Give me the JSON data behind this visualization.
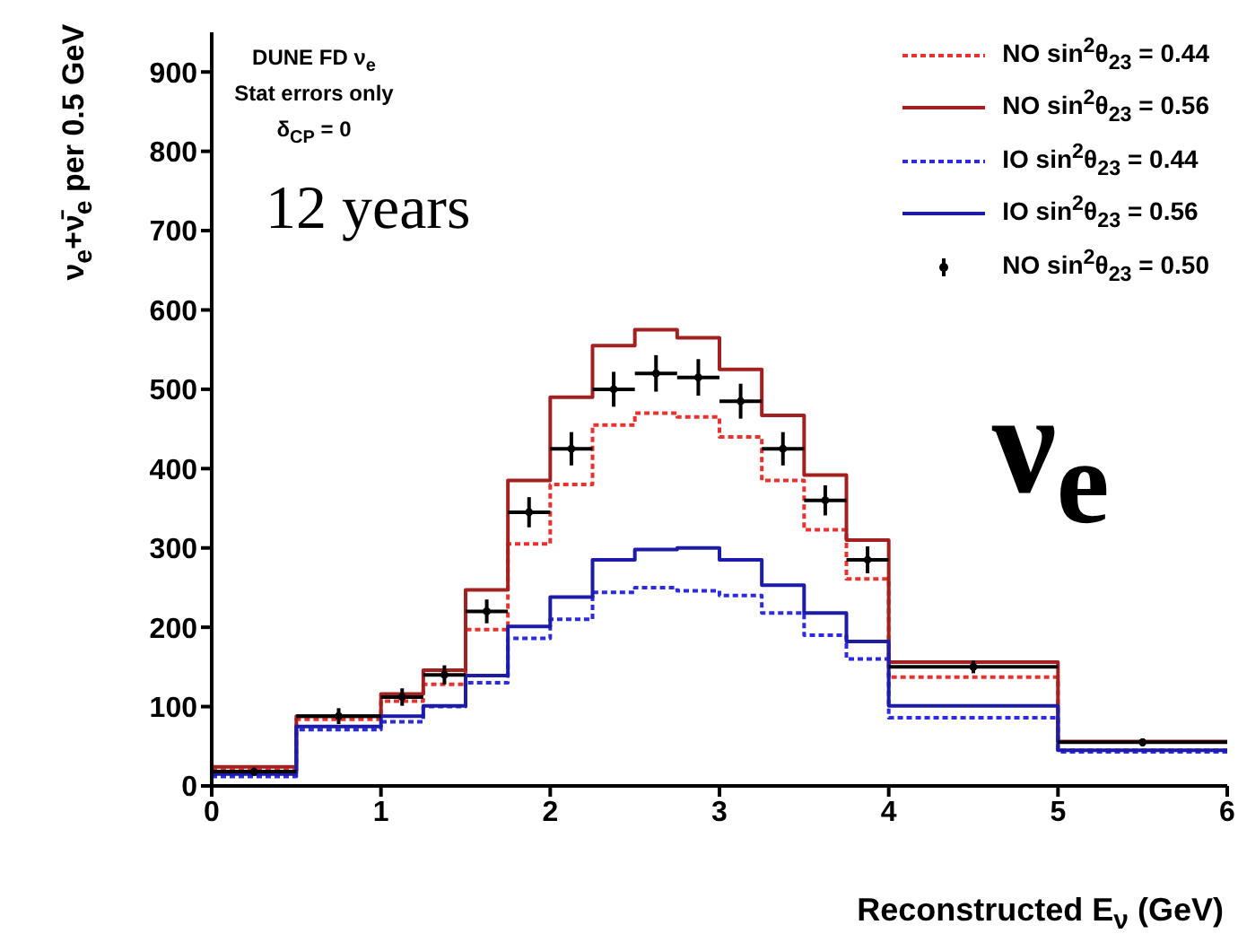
{
  "chart_data": {
    "type": "step",
    "annotations": [
      "DUNE FD ν$_{e}$",
      "Stat errors only",
      "δ$_{CP}$ = 0",
      "12 years",
      "ν$_{e}$"
    ],
    "xlabel": "Reconstructed E$_{ν}$ (GeV)",
    "ylabel": "ν$_{e}$+ν̄$_{e}$ per 0.5 GeV",
    "x": [
      0,
      0.5,
      1,
      1.25,
      1.5,
      1.75,
      2,
      2.25,
      2.5,
      2.75,
      3,
      3.25,
      3.5,
      3.75,
      4,
      5,
      6
    ],
    "series": [
      {
        "name": "NO sin$^{2}$θ$_{23}$ = 0.44",
        "color": "#e8322e",
        "line_style": "dotted",
        "values": [
          20,
          84,
          107,
          128,
          197,
          305,
          380,
          455,
          470,
          465,
          440,
          385,
          323,
          261,
          137,
          45,
          45
        ]
      },
      {
        "name": "NO sin$^{2}$θ$_{23}$ = 0.56",
        "color": "#a32020",
        "line_style": "solid",
        "values": [
          24,
          88,
          116,
          146,
          247,
          385,
          490,
          555,
          575,
          565,
          525,
          467,
          392,
          310,
          156,
          56,
          56
        ]
      },
      {
        "name": "IO sin$^{2}$θ$_{23}$ = 0.44",
        "color": "#2b2be0",
        "line_style": "dotted",
        "values": [
          12,
          71,
          81,
          100,
          130,
          186,
          210,
          244,
          250,
          246,
          240,
          218,
          190,
          160,
          86,
          43,
          43
        ]
      },
      {
        "name": "IO sin$^{2}$θ$_{23}$ = 0.56",
        "color": "#1c1ca8",
        "line_style": "solid",
        "values": [
          15,
          75,
          88,
          101,
          139,
          201,
          238,
          285,
          298,
          300,
          285,
          253,
          218,
          182,
          101,
          45,
          45
        ]
      },
      {
        "name": "NO sin$^{2}$θ$_{23}$ = 0.50",
        "type": "scatter",
        "color": "#000000",
        "marker": "circle",
        "x": [
          0.25,
          0.75,
          1.125,
          1.375,
          1.625,
          1.875,
          2.125,
          2.375,
          2.625,
          2.875,
          3.125,
          3.375,
          3.625,
          3.875,
          4.5,
          5.5
        ],
        "values": [
          18,
          88,
          112,
          140,
          220,
          345,
          425,
          500,
          520,
          515,
          485,
          425,
          360,
          285,
          150,
          55
        ],
        "errors": [
          5,
          10,
          11,
          12,
          15,
          19,
          21,
          22,
          23,
          23,
          22,
          21,
          19,
          17,
          8,
          5
        ],
        "xerrors": [
          0.25,
          0.25,
          0.125,
          0.125,
          0.125,
          0.125,
          0.125,
          0.125,
          0.125,
          0.125,
          0.125,
          0.125,
          0.125,
          0.125,
          0.5,
          0.5
        ]
      }
    ],
    "xlim": [
      0,
      6
    ],
    "xticks": [
      0,
      1,
      2,
      3,
      4,
      5,
      6
    ],
    "ylim": [
      0,
      950
    ],
    "yticks": [
      0,
      100,
      200,
      300,
      400,
      500,
      600,
      700,
      800,
      900
    ],
    "legend": "top right"
  }
}
